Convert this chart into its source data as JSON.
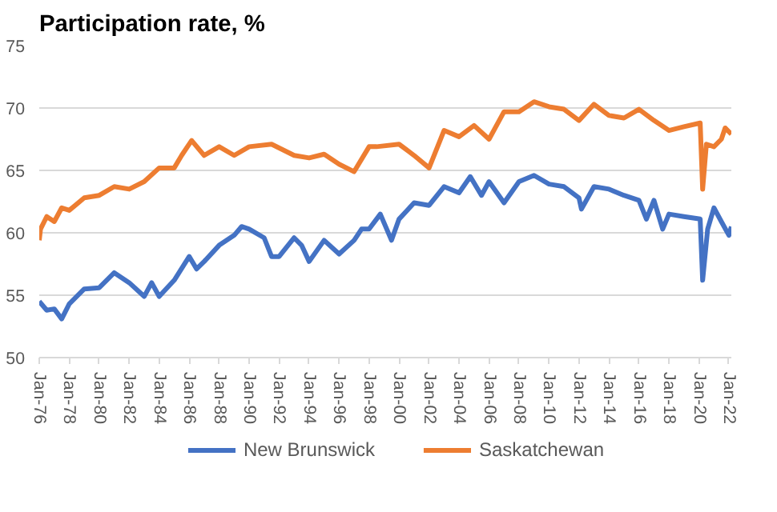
{
  "chart_data": {
    "type": "line",
    "title": "Participation rate, %",
    "xlim": [
      "1976-01",
      "2022-03"
    ],
    "xticks": [
      {
        "value": "1976-01",
        "label": "Jan-76"
      },
      {
        "value": "1978-01",
        "label": "Jan-78"
      },
      {
        "value": "1980-01",
        "label": "Jan-80"
      },
      {
        "value": "1982-01",
        "label": "Jan-82"
      },
      {
        "value": "1984-01",
        "label": "Jan-84"
      },
      {
        "value": "1986-01",
        "label": "Jan-86"
      },
      {
        "value": "1988-01",
        "label": "Jan-88"
      },
      {
        "value": "1990-01",
        "label": "Jan-90"
      },
      {
        "value": "1992-01",
        "label": "Jan-92"
      },
      {
        "value": "1994-01",
        "label": "Jan-94"
      },
      {
        "value": "1996-01",
        "label": "Jan-96"
      },
      {
        "value": "1998-01",
        "label": "Jan-98"
      },
      {
        "value": "2000-01",
        "label": "Jan-00"
      },
      {
        "value": "2002-01",
        "label": "Jan-02"
      },
      {
        "value": "2004-01",
        "label": "Jan-04"
      },
      {
        "value": "2006-01",
        "label": "Jan-06"
      },
      {
        "value": "2008-01",
        "label": "Jan-08"
      },
      {
        "value": "2010-01",
        "label": "Jan-10"
      },
      {
        "value": "2012-01",
        "label": "Jan-12"
      },
      {
        "value": "2014-01",
        "label": "Jan-14"
      },
      {
        "value": "2016-01",
        "label": "Jan-16"
      },
      {
        "value": "2018-01",
        "label": "Jan-18"
      },
      {
        "value": "2020-01",
        "label": "Jan-20"
      },
      {
        "value": "2022-01",
        "label": "Jan-22"
      }
    ],
    "ylim": [
      50,
      75
    ],
    "yticks": [
      50,
      55,
      60,
      65,
      70,
      75
    ],
    "grid": "y",
    "legend": "bottom",
    "series": [
      {
        "name": "New Brunswick",
        "color": "#4472c4",
        "x": [
          "1976-01",
          "1976-07",
          "1977-01",
          "1977-07",
          "1978-01",
          "1979-01",
          "1980-01",
          "1981-01",
          "1982-01",
          "1983-01",
          "1983-07",
          "1984-01",
          "1985-01",
          "1986-01",
          "1986-07",
          "1987-01",
          "1988-01",
          "1989-01",
          "1989-07",
          "1990-01",
          "1991-01",
          "1991-07",
          "1992-01",
          "1993-01",
          "1993-07",
          "1994-01",
          "1995-01",
          "1996-01",
          "1997-01",
          "1997-07",
          "1998-01",
          "1998-10",
          "1999-07",
          "2000-01",
          "2001-01",
          "2002-01",
          "2003-01",
          "2004-01",
          "2004-10",
          "2005-07",
          "2006-01",
          "2007-01",
          "2008-01",
          "2009-01",
          "2010-01",
          "2011-01",
          "2012-01",
          "2012-03",
          "2013-01",
          "2014-01",
          "2015-01",
          "2016-01",
          "2016-07",
          "2017-01",
          "2017-08",
          "2018-01",
          "2019-01",
          "2020-02",
          "2020-04",
          "2020-08",
          "2021-01",
          "2021-07",
          "2022-01",
          "2022-03"
        ],
        "values": [
          54.5,
          53.8,
          53.9,
          53.1,
          54.3,
          55.5,
          55.6,
          56.8,
          56.0,
          54.9,
          56.0,
          54.9,
          56.2,
          58.1,
          57.1,
          57.7,
          59.0,
          59.8,
          60.5,
          60.3,
          59.6,
          58.1,
          58.1,
          59.6,
          59.0,
          57.7,
          59.4,
          58.3,
          59.4,
          60.3,
          60.3,
          61.5,
          59.4,
          61.1,
          62.4,
          62.2,
          63.7,
          63.2,
          64.5,
          63.0,
          64.1,
          62.4,
          64.1,
          64.6,
          63.9,
          63.7,
          62.8,
          61.9,
          63.7,
          63.5,
          63.0,
          62.6,
          61.1,
          62.6,
          60.3,
          61.5,
          61.3,
          61.1,
          56.2,
          60.3,
          62.0,
          60.9,
          59.8,
          60.5
        ]
      },
      {
        "name": "Saskatchewan",
        "color": "#ed7d31",
        "x": [
          "1976-01",
          "1976-02",
          "1976-07",
          "1977-01",
          "1977-07",
          "1978-01",
          "1979-01",
          "1980-01",
          "1981-01",
          "1982-01",
          "1983-01",
          "1984-01",
          "1985-01",
          "1985-07",
          "1986-03",
          "1987-01",
          "1988-01",
          "1989-01",
          "1990-01",
          "1991-07",
          "1993-01",
          "1994-01",
          "1995-01",
          "1996-01",
          "1997-01",
          "1998-01",
          "1998-07",
          "2000-01",
          "2001-01",
          "2002-01",
          "2003-01",
          "2004-01",
          "2005-01",
          "2006-01",
          "2007-01",
          "2008-01",
          "2009-01",
          "2010-01",
          "2011-01",
          "2012-01",
          "2013-01",
          "2014-01",
          "2015-01",
          "2016-01",
          "2017-01",
          "2018-01",
          "2019-01",
          "2020-02",
          "2020-04",
          "2020-07",
          "2021-01",
          "2021-07",
          "2021-10",
          "2022-03"
        ],
        "values": [
          59.4,
          60.3,
          61.3,
          60.9,
          62.0,
          61.8,
          62.8,
          63.0,
          63.7,
          63.5,
          64.1,
          65.2,
          65.2,
          66.2,
          67.4,
          66.2,
          66.9,
          66.2,
          66.9,
          67.1,
          66.2,
          66.0,
          66.3,
          65.5,
          64.9,
          66.9,
          66.9,
          67.1,
          66.2,
          65.2,
          68.2,
          67.7,
          68.6,
          67.5,
          69.7,
          69.7,
          70.5,
          70.1,
          69.9,
          69.0,
          70.3,
          69.4,
          69.2,
          69.9,
          69.0,
          68.2,
          68.5,
          68.8,
          63.5,
          67.1,
          66.9,
          67.5,
          68.4,
          67.9
        ]
      }
    ]
  }
}
